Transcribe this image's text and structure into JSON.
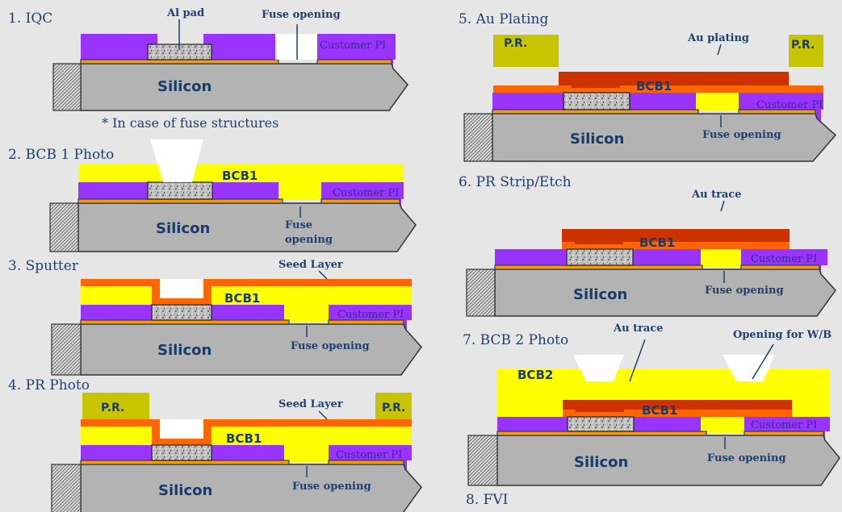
{
  "colors": {
    "background": "#e6e6e6",
    "silicon": "#b3b3b3",
    "customer_pi": "#9933ff",
    "bcb": "#ffff00",
    "seed_layer": "#ff6600",
    "au": "#cc3300",
    "photoresist": "#c8c400",
    "metal": "#ff9900",
    "text": "#1f3f6e"
  },
  "steps": [
    {
      "title": "1. IQC",
      "labels": {
        "al_pad": "Al pad",
        "fuse_opening": "Fuse opening",
        "customer_pi": "Customer PI",
        "silicon": "Silicon"
      },
      "note": "* In case of fuse structures"
    },
    {
      "title": "2. BCB 1 Photo",
      "labels": {
        "bcb1": "BCB1",
        "customer_pi": "Customer PI",
        "silicon": "Silicon",
        "fuse_line1": "Fuse",
        "fuse_line2": "opening"
      }
    },
    {
      "title": "3. Sputter",
      "labels": {
        "seed_layer": "Seed Layer",
        "bcb1": "BCB1",
        "customer_pi": "Customer PI",
        "silicon": "Silicon",
        "fuse_opening": "Fuse opening"
      }
    },
    {
      "title": "4. PR Photo",
      "labels": {
        "pr": "P.R.",
        "seed_layer": "Seed Layer",
        "bcb1": "BCB1",
        "customer_pi": "Customer PI",
        "silicon": "Silicon",
        "fuse_opening": "Fuse opening"
      }
    },
    {
      "title": "5. Au Plating",
      "labels": {
        "pr": "P.R.",
        "au_plating": "Au plating",
        "bcb1": "BCB1",
        "customer_pi": "Customer PI",
        "silicon": "Silicon",
        "fuse_opening": "Fuse opening"
      }
    },
    {
      "title": "6. PR Strip/Etch",
      "labels": {
        "au_trace": "Au trace",
        "bcb1": "BCB1",
        "customer_pi": "Customer PI",
        "silicon": "Silicon",
        "fuse_opening": "Fuse opening"
      }
    },
    {
      "title": "7. BCB 2 Photo",
      "labels": {
        "au_trace": "Au trace",
        "opening_wb": "Opening for W/B",
        "bcb2": "BCB2",
        "bcb1": "BCB1",
        "customer_pi": "Customer PI",
        "silicon": "Silicon",
        "fuse_opening": "Fuse opening"
      }
    },
    {
      "title": "8. FVI"
    }
  ]
}
